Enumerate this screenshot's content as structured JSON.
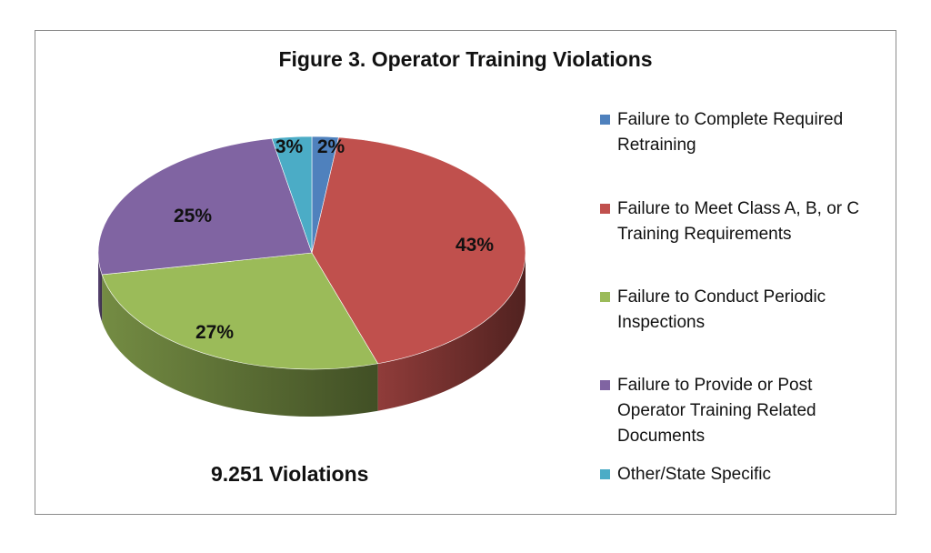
{
  "chart_data": {
    "type": "pie",
    "title": "Figure 3.  Operator Training Violations",
    "footnote": "9.251 Violations",
    "legend_position": "right",
    "slices": [
      {
        "label": "Failure to Complete Required Retraining",
        "value": 2,
        "value_label": "2%",
        "color": "#4f81bd"
      },
      {
        "label": "Failure to Meet Class A, B, or C Training Requirements",
        "value": 43,
        "value_label": "43%",
        "color": "#c0504d"
      },
      {
        "label": "Failure to Conduct Periodic Inspections",
        "value": 27,
        "value_label": "27%",
        "color": "#9bbb59"
      },
      {
        "label": "Failure to Provide or Post Operator Training Related Documents",
        "value": 25,
        "value_label": "25%",
        "color": "#8064a2"
      },
      {
        "label": "Other/State Specific",
        "value": 3,
        "value_label": "3%",
        "color": "#4bacc6"
      }
    ]
  }
}
